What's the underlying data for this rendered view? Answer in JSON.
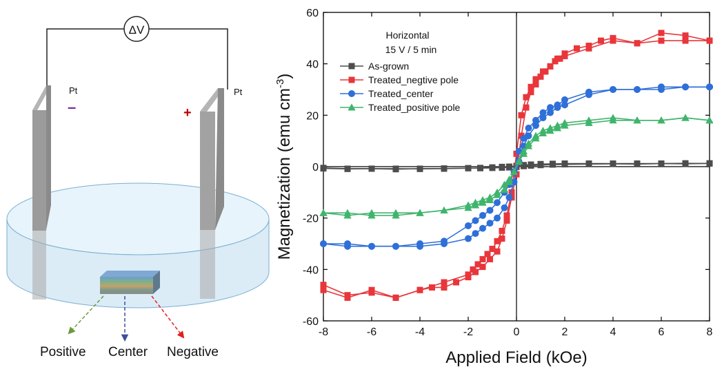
{
  "schematic": {
    "voltmeter_label": "ΔV",
    "left_electrode_label": "Pt",
    "right_electrode_label": "Pt",
    "left_polarity": "–",
    "right_polarity": "+",
    "arrows": [
      {
        "label": "Positive",
        "color": "#6a9a3a"
      },
      {
        "label": "Center",
        "color": "#3a4f9a"
      },
      {
        "label": "Negative",
        "color": "#e02020"
      }
    ]
  },
  "chart_data": {
    "type": "line",
    "xlabel": "Applied Field (kOe)",
    "ylabel": "Magnetization (emu cm⁻³)",
    "ylabel_base": "Magnetization (emu cm",
    "ylabel_exp": "-3",
    "ylabel_close": ")",
    "xlim": [
      -8,
      8
    ],
    "ylim": [
      -60,
      60
    ],
    "x_ticks": [
      -8,
      -6,
      -4,
      -2,
      0,
      2,
      4,
      6,
      8
    ],
    "y_ticks": [
      -60,
      -40,
      -20,
      0,
      20,
      40,
      60
    ],
    "grid": false,
    "legend_title_lines": [
      "Horizontal",
      "15 V / 5 min"
    ],
    "legend_position": "top-left",
    "series": [
      {
        "name": "As-grown",
        "color": "#4d4d4d",
        "marker": "square",
        "branches": [
          {
            "x": [
              -8,
              -7,
              -6,
              -5,
              -4,
              -3,
              -2,
              -1.5,
              -1,
              -0.6,
              -0.3,
              0,
              0.3,
              0.6,
              1,
              1.5,
              2,
              3,
              4,
              5,
              6,
              7,
              8
            ],
            "y": [
              -0.5,
              -0.8,
              -0.8,
              -1,
              -0.8,
              -0.8,
              -0.6,
              -0.5,
              -0.3,
              -0.1,
              0,
              0.3,
              0.6,
              0.8,
              1,
              1.1,
              1.2,
              1.2,
              1.2,
              1.2,
              1.2,
              1.3,
              1.2
            ]
          },
          {
            "x": [
              8,
              7,
              6,
              5,
              4,
              3,
              2,
              1.5,
              1,
              0.6,
              0.3,
              0,
              -0.3,
              -0.6,
              -1,
              -1.5,
              -2,
              -3,
              -4,
              -5,
              -6,
              -7,
              -8
            ],
            "y": [
              1.3,
              1.1,
              1.2,
              1,
              1.1,
              1,
              0.9,
              0.8,
              0.6,
              0.4,
              0.2,
              -0.1,
              -0.3,
              -0.4,
              -0.5,
              -0.6,
              -0.6,
              -0.7,
              -0.9,
              -0.8,
              -0.8,
              -0.9,
              -0.7
            ]
          }
        ]
      },
      {
        "name": "Treated_negtive pole",
        "color": "#e8363b",
        "marker": "square",
        "branches": [
          {
            "x": [
              -8,
              -7,
              -6,
              -5,
              -4,
              -3.5,
              -3,
              -2.5,
              -2,
              -1.7,
              -1.4,
              -1.1,
              -0.8,
              -0.6,
              -0.4,
              -0.2,
              0,
              0.2,
              0.4,
              0.6,
              0.8,
              1,
              1.2,
              1.4,
              1.6,
              1.8,
              2,
              3,
              4,
              5,
              6,
              7,
              8
            ],
            "y": [
              -48,
              -51,
              -48,
              -51,
              -48,
              -47,
              -47,
              -45,
              -43,
              -41,
              -39,
              -36,
              -33,
              -28,
              -21,
              -12,
              -3,
              12,
              23,
              29,
              32,
              35,
              37,
              39,
              41,
              42,
              43,
              46,
              49,
              48,
              49,
              49,
              49
            ]
          },
          {
            "x": [
              8,
              7,
              6,
              5,
              4,
              3.5,
              3,
              2.5,
              2,
              1.7,
              1.4,
              1.1,
              0.8,
              0.6,
              0.4,
              0.2,
              0,
              -0.2,
              -0.4,
              -0.6,
              -0.8,
              -1,
              -1.2,
              -1.4,
              -1.6,
              -1.8,
              -2,
              -3,
              -4,
              -5,
              -6,
              -7,
              -8
            ],
            "y": [
              49,
              51,
              52,
              48,
              50,
              49,
              47,
              46,
              44,
              42,
              39,
              37,
              34,
              31,
              27,
              20,
              5,
              -10,
              -19,
              -25,
              -29,
              -32,
              -34,
              -36,
              -38,
              -40,
              -42,
              -45,
              -48,
              -51,
              -49,
              -50,
              -46
            ]
          }
        ]
      },
      {
        "name": "Treated_center",
        "color": "#2f6fd8",
        "marker": "circle",
        "branches": [
          {
            "x": [
              -8,
              -7,
              -6,
              -5,
              -4,
              -3,
              -2,
              -1.7,
              -1.4,
              -1.1,
              -0.8,
              -0.5,
              -0.3,
              -0.1,
              0.1,
              0.3,
              0.5,
              0.8,
              1.1,
              1.4,
              1.7,
              2,
              3,
              4,
              5,
              6,
              7,
              8
            ],
            "y": [
              -30,
              -31,
              -31,
              -31,
              -31,
              -30,
              -28,
              -26,
              -24,
              -22,
              -20,
              -16,
              -12,
              -6,
              2,
              8,
              12,
              16,
              19,
              21,
              23,
              24,
              28,
              30,
              30,
              31,
              31,
              31
            ]
          },
          {
            "x": [
              8,
              7,
              6,
              5,
              4,
              3,
              2,
              1.7,
              1.4,
              1.1,
              0.8,
              0.5,
              0.3,
              0.1,
              -0.1,
              -0.3,
              -0.5,
              -0.8,
              -1.1,
              -1.4,
              -1.7,
              -2,
              -3,
              -4,
              -5,
              -6,
              -7,
              -8
            ],
            "y": [
              31,
              31,
              30,
              30,
              30,
              29,
              26,
              24,
              23,
              21,
              18,
              15,
              11,
              6,
              -2,
              -7,
              -10,
              -14,
              -17,
              -19,
              -21,
              -23,
              -29,
              -30,
              -31,
              -31,
              -30,
              -30
            ]
          }
        ]
      },
      {
        "name": "Treated_positive pole",
        "color": "#3fb56c",
        "marker": "triangle",
        "branches": [
          {
            "x": [
              -8,
              -7,
              -6,
              -5,
              -4,
              -3,
              -2,
              -1.7,
              -1.4,
              -1.1,
              -0.8,
              -0.5,
              -0.3,
              -0.1,
              0.1,
              0.3,
              0.5,
              0.8,
              1.1,
              1.4,
              1.7,
              2,
              3,
              4,
              5,
              6,
              7,
              8
            ],
            "y": [
              -18,
              -18,
              -19,
              -19,
              -18,
              -17,
              -16,
              -15,
              -14,
              -13,
              -11,
              -9,
              -6,
              -2,
              2,
              5,
              8,
              11,
              13,
              14,
              15,
              16,
              17,
              18,
              18,
              18,
              19,
              18
            ]
          },
          {
            "x": [
              8,
              7,
              6,
              5,
              4,
              3,
              2,
              1.7,
              1.4,
              1.1,
              0.8,
              0.5,
              0.3,
              0.1,
              -0.1,
              -0.3,
              -0.5,
              -0.8,
              -1.1,
              -1.4,
              -1.7,
              -2,
              -3,
              -4,
              -5,
              -6,
              -7,
              -8
            ],
            "y": [
              18,
              19,
              18,
              18,
              19,
              18,
              17,
              16,
              15,
              14,
              12,
              9,
              6,
              2,
              -2,
              -5,
              -7,
              -10,
              -12,
              -13,
              -14,
              -15,
              -17,
              -18,
              -18,
              -18,
              -19,
              -18
            ]
          }
        ]
      }
    ]
  }
}
